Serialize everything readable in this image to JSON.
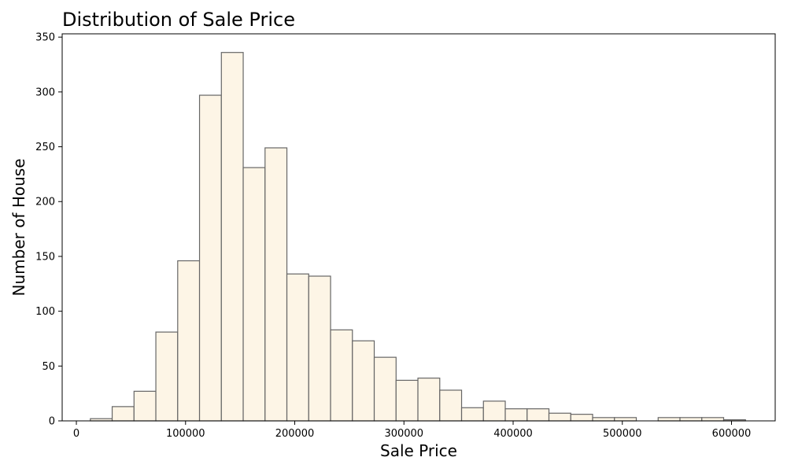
{
  "chart_data": {
    "type": "bar",
    "title": "Distribution of Sale Price",
    "xlabel": "Sale Price",
    "ylabel": "Number of House",
    "xlim": [
      -13000,
      640000
    ],
    "ylim": [
      0,
      353
    ],
    "xticks": [
      0,
      100000,
      200000,
      300000,
      400000,
      500000,
      600000
    ],
    "yticks": [
      0,
      50,
      100,
      150,
      200,
      250,
      300,
      350
    ],
    "bin_edges": [
      12800,
      32800,
      52800,
      72800,
      92800,
      112800,
      132800,
      152800,
      172800,
      192800,
      212800,
      232800,
      252800,
      272800,
      292800,
      312800,
      332800,
      352800,
      372800,
      392800,
      412800,
      432800,
      452800,
      472800,
      492800,
      512800,
      532800,
      552800,
      572800,
      592800,
      612800
    ],
    "values": [
      2,
      13,
      27,
      81,
      146,
      297,
      336,
      231,
      249,
      134,
      132,
      83,
      73,
      58,
      37,
      39,
      28,
      12,
      18,
      11,
      11,
      7,
      6,
      3,
      3,
      0,
      3,
      3,
      3,
      1
    ],
    "bar_fill": "#fdf5e6",
    "bar_edge": "#666666",
    "grid": false
  }
}
